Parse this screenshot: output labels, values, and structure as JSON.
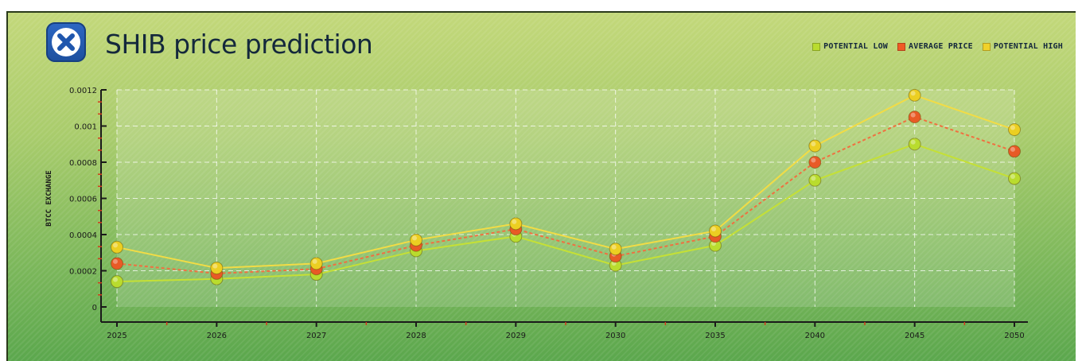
{
  "header": {
    "title": "SHIB price prediction",
    "logo_icon": "x-circle-logo-icon"
  },
  "legend": [
    {
      "label": "POTENTIAL LOW",
      "color": "#b9dc2e"
    },
    {
      "label": "AVERAGE PRICE",
      "color": "#f05a25"
    },
    {
      "label": "POTENTIAL HIGH",
      "color": "#f0d22a"
    }
  ],
  "colors": {
    "low_line": "#c5e035",
    "avg_line": "#f07040",
    "high_line": "#f2dc45",
    "low_marker": "#b9dc2e",
    "avg_marker": "#e85a26",
    "high_marker": "#eccf22",
    "plot_background": "#ffffff",
    "grid": "#ffffff",
    "axis": "#1a1a1a",
    "minor_tick": "#d43a1a"
  },
  "chart_data": {
    "type": "line",
    "categories": [
      "2025",
      "2026",
      "2027",
      "2028",
      "2029",
      "2030",
      "2035",
      "2040",
      "2045",
      "2050"
    ],
    "ylabel": "BTCC EXCHANGE",
    "xlabel": "",
    "ylim": [
      0,
      0.0012
    ],
    "yticks": [
      0,
      0.0002,
      0.0004,
      0.0006,
      0.0008,
      0.001,
      0.0012
    ],
    "ytick_labels": [
      "0",
      "0.0002",
      "0.0004",
      "0.0006",
      "0.0008",
      "0.001",
      "0.0012"
    ],
    "grid": true,
    "legend_position": "top-right",
    "series": [
      {
        "name": "POTENTIAL LOW",
        "values": [
          0.00014,
          0.000155,
          0.00018,
          0.00031,
          0.00039,
          0.00023,
          0.00034,
          0.0007,
          0.0009,
          0.00071
        ]
      },
      {
        "name": "AVERAGE PRICE",
        "values": [
          0.00024,
          0.000185,
          0.00021,
          0.00034,
          0.00043,
          0.00028,
          0.00039,
          0.0008,
          0.00105,
          0.00086
        ]
      },
      {
        "name": "POTENTIAL HIGH",
        "values": [
          0.00033,
          0.000215,
          0.00024,
          0.00037,
          0.00046,
          0.00032,
          0.00042,
          0.00089,
          0.00117,
          0.00098
        ]
      }
    ]
  }
}
